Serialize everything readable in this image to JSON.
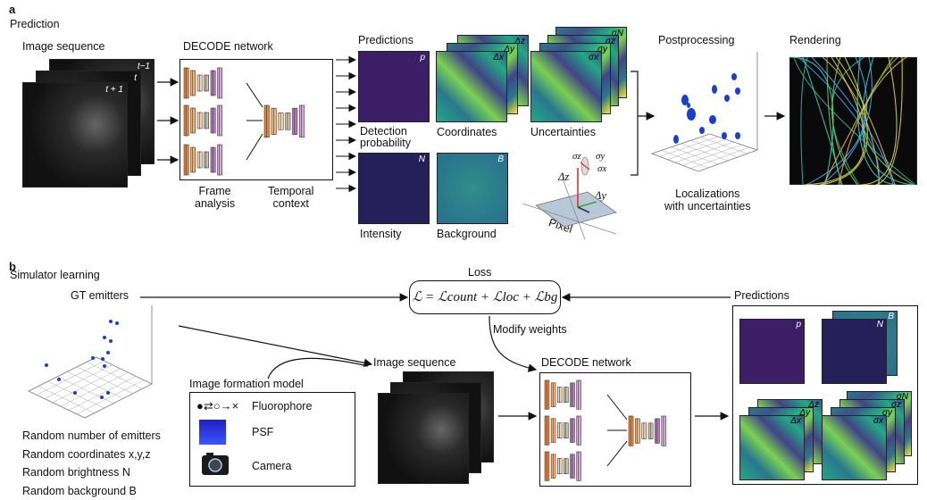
{
  "panel_a": {
    "letter": "a",
    "title": "Prediction",
    "image_sequence": "Image sequence",
    "frame_labels": [
      "t−1",
      "t",
      "t + 1"
    ],
    "network_title": "DECODE network",
    "frame_analysis": "Frame\nanalysis",
    "temporal_context": "Temporal\ncontext",
    "predictions_title": "Predictions",
    "tile_p": "p",
    "tile_dx": "Δx",
    "tile_dy": "Δy",
    "tile_dz": "Δz",
    "tile_sx": "σx",
    "tile_sy": "σy",
    "tile_sz": "σz",
    "tile_sn": "σN",
    "tile_n": "N",
    "tile_b": "B",
    "detection_probability": "Detection\nprobability",
    "coordinates": "Coordinates",
    "uncertainties": "Uncertainties",
    "intensity": "Intensity",
    "background": "Background",
    "pixel": "Pixel",
    "sigma_z": "σz",
    "sigma_y": "σy",
    "sigma_x": "σx",
    "delta_z": "Δz",
    "delta_y": "Δy",
    "delta_x": "Δx",
    "postprocessing": "Postprocessing",
    "localizations": "Localizations\nwith uncertainties",
    "rendering": "Rendering"
  },
  "panel_b": {
    "letter": "b",
    "title": "Simulator learning",
    "gt_emitters": "GT emitters",
    "loss_title": "Loss",
    "loss_formula": "ℒ = ℒcount + ℒloc + ℒbg",
    "modify_weights": "Modify weights",
    "predictions": "Predictions",
    "image_sequence": "Image sequence",
    "network_title": "DECODE network",
    "image_formation_model": "Image formation model",
    "fluorophore": "Fluorophore",
    "psf": "PSF",
    "camera": "Camera",
    "random_lines": [
      "Random number of emitters",
      "Random coordinates x,y,z",
      "Random brightness N",
      "Random background B"
    ],
    "tile_p": "p",
    "tile_n": "N",
    "tile_b": "B",
    "tile_dx": "Δx",
    "tile_dy": "Δy",
    "tile_dz": "Δz",
    "tile_sx": "σx",
    "tile_sy": "σy",
    "tile_sz": "σz",
    "tile_sn": "σN"
  },
  "colors": {
    "emitter_blue": "#1a3fd0",
    "unet_orange": "#e8843c",
    "unet_purple": "#b07ab8",
    "viridis_yellow": "#fde725"
  }
}
